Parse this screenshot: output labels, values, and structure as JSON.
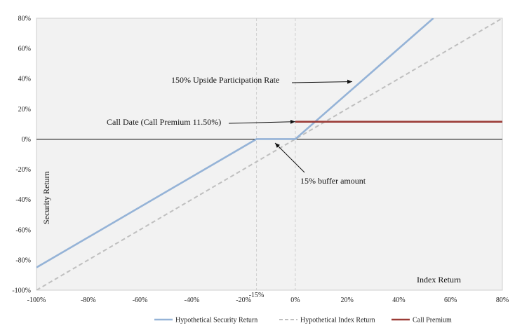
{
  "chart_data": {
    "type": "line",
    "xlabel": "Index Return",
    "ylabel": "Security Return",
    "xlim": [
      -100,
      80
    ],
    "ylim": [
      -100,
      80
    ],
    "x_ticks": [
      -100,
      -80,
      -60,
      -40,
      -20,
      0,
      20,
      40,
      60,
      80
    ],
    "y_ticks": [
      -100,
      -80,
      -60,
      -40,
      -20,
      0,
      20,
      40,
      60,
      80
    ],
    "x_tick_labels": [
      "-100%",
      "-80%",
      "-60%",
      "-40%",
      "-20%",
      "0%",
      "20%",
      "40%",
      "60%",
      "80%"
    ],
    "y_tick_labels": [
      "-100%",
      "-80%",
      "-60%",
      "-40%",
      "-20%",
      "0%",
      "20%",
      "40%",
      "60%",
      "80%"
    ],
    "buffer_tick": {
      "x": -15,
      "label": "-15%"
    },
    "grid": false,
    "legend_position": "bottom",
    "series": [
      {
        "name": "Hypothetical Security Return",
        "color": "#95b3d7",
        "style": "solid",
        "points": [
          [
            -100,
            -85
          ],
          [
            -15,
            0
          ],
          [
            0,
            0
          ],
          [
            53.33,
            80
          ]
        ]
      },
      {
        "name": "Hypothetical Index Return",
        "color": "#bfbfbf",
        "style": "dashed",
        "points": [
          [
            -100,
            -100
          ],
          [
            80,
            80
          ]
        ]
      },
      {
        "name": "Call Premium",
        "color": "#9b3b36",
        "style": "solid",
        "points": [
          [
            0,
            11.5
          ],
          [
            80,
            11.5
          ]
        ]
      }
    ],
    "annotations": [
      {
        "text": "150% Upside Participation Rate",
        "arrow_to": [
          22,
          38
        ]
      },
      {
        "text": "Call Date (Call Premium 11.50%)",
        "arrow_to": [
          0,
          11.5
        ]
      },
      {
        "text": "15% buffer amount",
        "arrow_to": [
          -8,
          -2
        ]
      }
    ]
  }
}
